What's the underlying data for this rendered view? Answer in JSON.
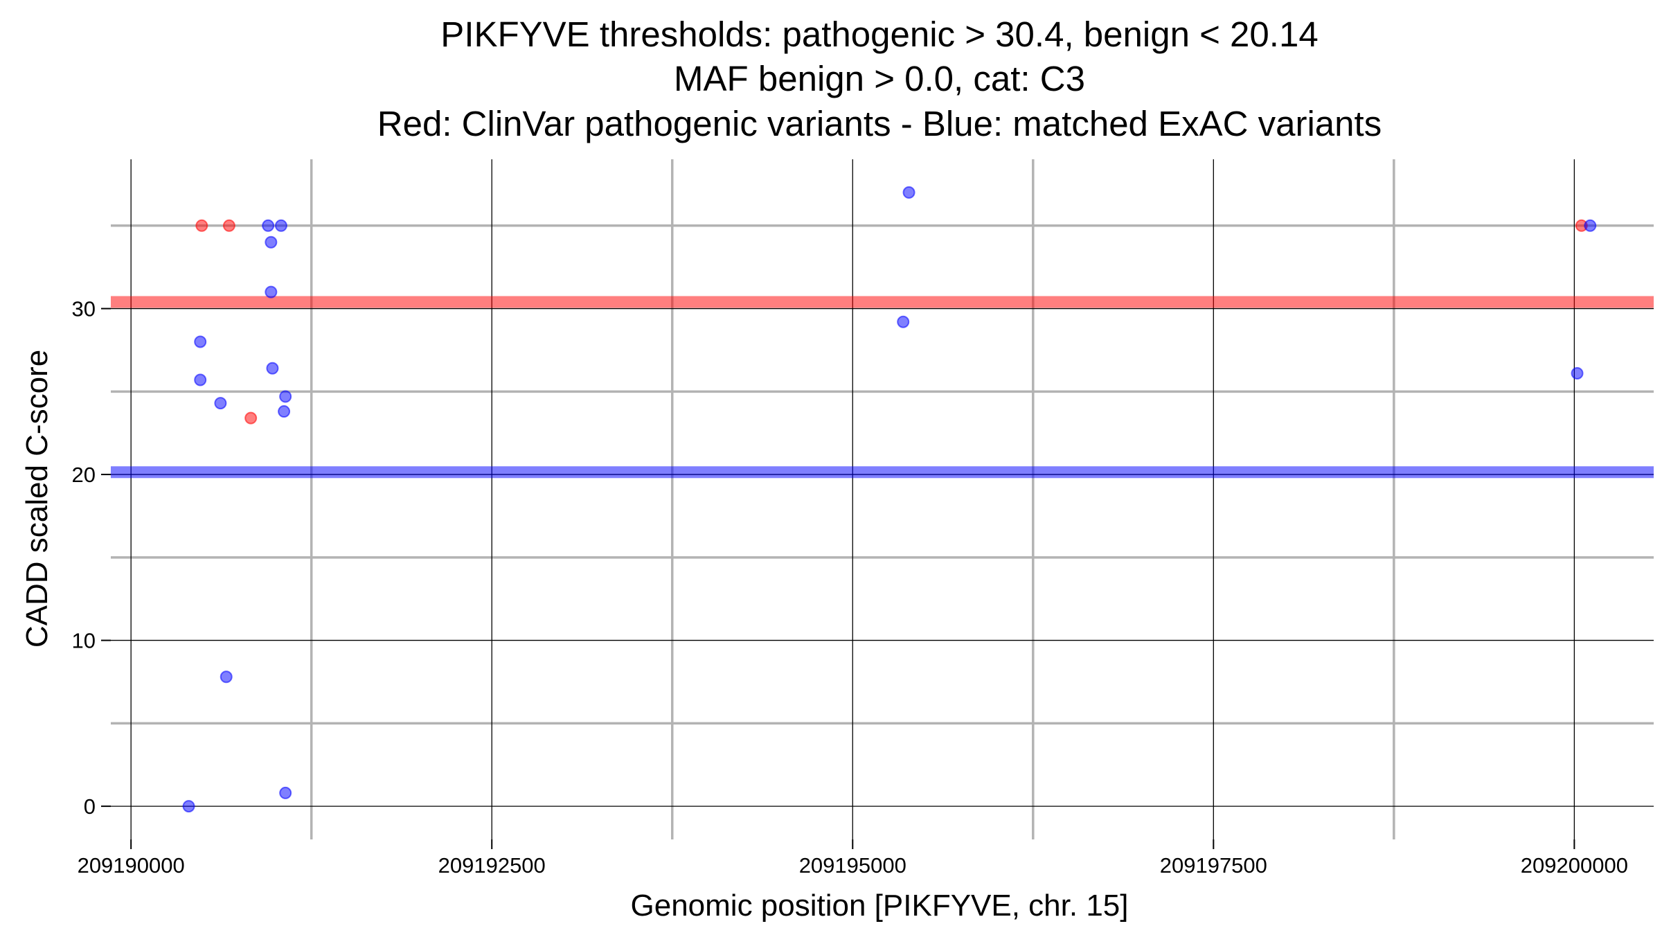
{
  "chart_data": {
    "type": "scatter",
    "title": [
      "PIKFYVE thresholds: pathogenic > 30.4, benign < 20.14",
      "MAF benign > 0.0, cat: C3",
      "Red: ClinVar pathogenic variants - Blue: matched ExAC variants"
    ],
    "xlabel": "Genomic position [PIKFYVE, chr. 15]",
    "ylabel": "CADD scaled C-score",
    "xlim": [
      209189860,
      209200550
    ],
    "ylim": [
      -2,
      39
    ],
    "x_ticks": [
      209190000,
      209192500,
      209195000,
      209197500,
      209200000
    ],
    "x_tick_labels": [
      "209190000",
      "209192500",
      "209195000",
      "209197500",
      "209200000"
    ],
    "y_ticks": [
      0,
      10,
      20,
      30
    ],
    "y_tick_labels": [
      "0",
      "10",
      "20",
      "30"
    ],
    "x_major_grid": [
      209190000,
      209192500,
      209195000,
      209197500,
      209200000
    ],
    "x_minor_grid": [
      209191250,
      209193750,
      209196250,
      209198750
    ],
    "y_major_grid": [
      0,
      10,
      20,
      30
    ],
    "y_minor_grid": [
      5,
      15,
      25,
      35
    ],
    "thresholds": [
      {
        "name": "pathogenic",
        "value": 30.4,
        "color": "#ff0000"
      },
      {
        "name": "benign",
        "value": 20.14,
        "color": "#0000ff"
      }
    ],
    "series": [
      {
        "color": "#ff0000",
        "points": [
          {
            "x": 209190490,
            "y": 35.0
          },
          {
            "x": 209190680,
            "y": 35.0
          },
          {
            "x": 209190830,
            "y": 23.4
          },
          {
            "x": 209200050,
            "y": 35.0
          }
        ]
      },
      {
        "color": "#0000ff",
        "points": [
          {
            "x": 209190400,
            "y": 0.0
          },
          {
            "x": 209190480,
            "y": 28.0
          },
          {
            "x": 209190480,
            "y": 25.7
          },
          {
            "x": 209190620,
            "y": 24.3
          },
          {
            "x": 209190660,
            "y": 7.8
          },
          {
            "x": 209190950,
            "y": 35.0
          },
          {
            "x": 209190970,
            "y": 34.0
          },
          {
            "x": 209190970,
            "y": 31.0
          },
          {
            "x": 209190980,
            "y": 26.4
          },
          {
            "x": 209191040,
            "y": 35.0
          },
          {
            "x": 209191070,
            "y": 24.7
          },
          {
            "x": 209191060,
            "y": 23.8
          },
          {
            "x": 209191070,
            "y": 0.8
          },
          {
            "x": 209195350,
            "y": 29.2
          },
          {
            "x": 209195390,
            "y": 37.0
          },
          {
            "x": 209200020,
            "y": 26.1
          },
          {
            "x": 209200110,
            "y": 35.0
          }
        ]
      }
    ]
  }
}
